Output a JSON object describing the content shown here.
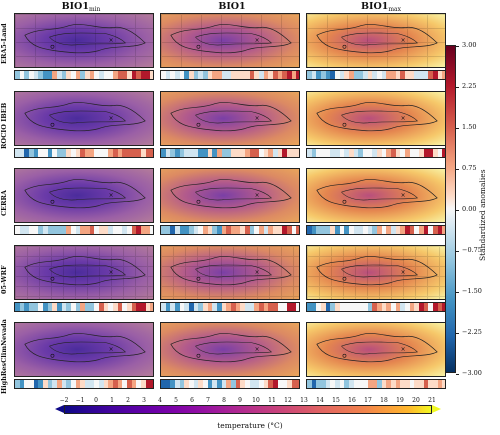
{
  "columns": [
    {
      "main": "BIO1",
      "sub": "min"
    },
    {
      "main": "BIO1",
      "sub": ""
    },
    {
      "main": "BIO1",
      "sub": "max"
    }
  ],
  "rows": [
    "ERA5-Land",
    "ROCIO IBEB",
    "CERRA",
    "05-WRF",
    "HighResClimNevada"
  ],
  "anomaly_colorbar": {
    "label": "Standardized anomalies",
    "ticks": [
      "3.00",
      "2.25",
      "1.50",
      "0.75",
      "0.00",
      "−0.75",
      "−1.50",
      "−2.25",
      "−3.00"
    ],
    "colors": [
      "#67001f",
      "#d6604d",
      "#f7f7f7",
      "#4393c3",
      "#053061"
    ]
  },
  "temperature_colorbar": {
    "label": "temperature (°C)",
    "ticks": [
      "−2",
      "−1",
      "0",
      "1",
      "2",
      "3",
      "4",
      "5",
      "6",
      "7",
      "8",
      "9",
      "10",
      "11",
      "12",
      "13",
      "14",
      "15",
      "16",
      "17",
      "18",
      "19",
      "20",
      "21"
    ],
    "colors": [
      "#0d0887",
      "#6a00a8",
      "#b12a90",
      "#e16462",
      "#fca636",
      "#f0f921"
    ]
  }
}
